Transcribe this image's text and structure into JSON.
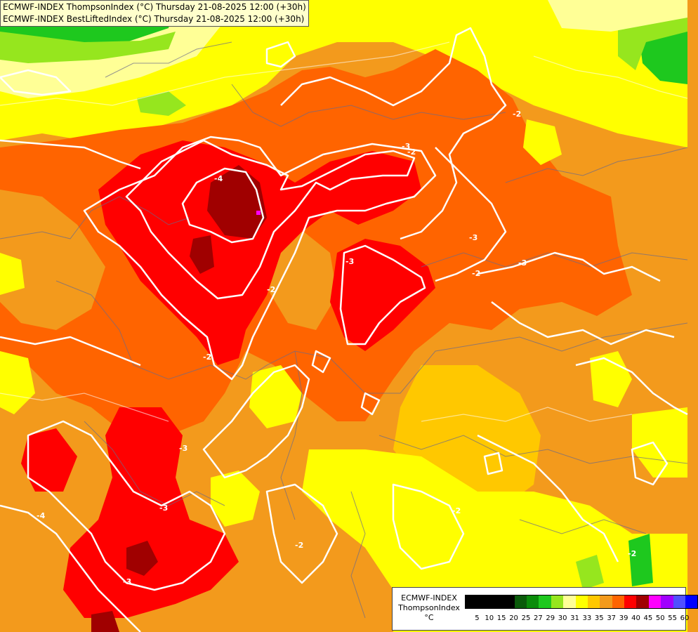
{
  "header": {
    "line1": "ECMWF-INDEX ThompsonIndex (°C) Thursday 21-08-2025 12:00 (+30h)",
    "line2": "ECMWF-INDEX BestLiftedIndex (°C) Thursday 21-08-2025 12:00 (+30h)"
  },
  "legend": {
    "model": "ECMWF-INDEX",
    "index": "ThompsonIndex",
    "unit": "°C",
    "ticks": [
      "5",
      "10",
      "15",
      "20",
      "25",
      "27",
      "29",
      "30",
      "31",
      "33",
      "35",
      "37",
      "39",
      "40",
      "45",
      "50",
      "55",
      "60"
    ],
    "colors": [
      "#000000",
      "#000000",
      "#000000",
      "#000000",
      "#0a5a0a",
      "#0a8c0a",
      "#1ec81e",
      "#96e61e",
      "#ffff96",
      "#ffff00",
      "#ffc800",
      "#f39a1c",
      "#ff6400",
      "#ff0000",
      "#a00000",
      "#ff00ff",
      "#a000ff",
      "#5050ff",
      "#0000ff"
    ]
  },
  "contour_labels": [
    "-4",
    "-3",
    "-2",
    "-3",
    "-2",
    "-3",
    "-2",
    "-3",
    "-2",
    "-3",
    "-2",
    "-3",
    "-4",
    "-2",
    "-2",
    "-3",
    "-2"
  ]
}
